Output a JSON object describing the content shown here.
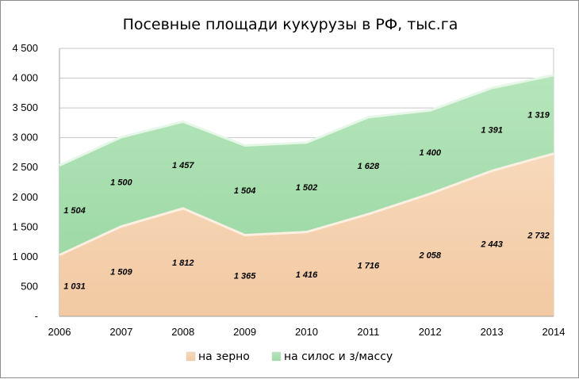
{
  "chart_data": {
    "type": "area",
    "stacked": true,
    "title": "Посевные площади кукурузы в РФ, тыс.га",
    "x": [
      "2006",
      "2007",
      "2008",
      "2009",
      "2010",
      "2011",
      "2012",
      "2013",
      "2014"
    ],
    "series": [
      {
        "name": "на зерно",
        "values": [
          1031,
          1509,
          1812,
          1365,
          1416,
          1716,
          2058,
          2443,
          2732
        ],
        "labels": [
          "1 031",
          "1 509",
          "1 812",
          "1 365",
          "1 416",
          "1 716",
          "2 058",
          "2 443",
          "2 732"
        ],
        "color": "#f4cfab"
      },
      {
        "name": "на силос и з/массу",
        "values": [
          1504,
          1500,
          1457,
          1504,
          1502,
          1628,
          1400,
          1391,
          1319
        ],
        "labels": [
          "1 504",
          "1 500",
          "1 457",
          "1 504",
          "1 502",
          "1 628",
          "1 400",
          "1 391",
          "1 319"
        ],
        "color": "#a9dfb0"
      }
    ],
    "yticks": [
      "-",
      "500",
      "1 000",
      "1 500",
      "2 000",
      "2 500",
      "3 000",
      "3 500",
      "4 000",
      "4 500"
    ],
    "ylim": [
      0,
      4500
    ],
    "grid": true,
    "legend_position": "bottom"
  }
}
